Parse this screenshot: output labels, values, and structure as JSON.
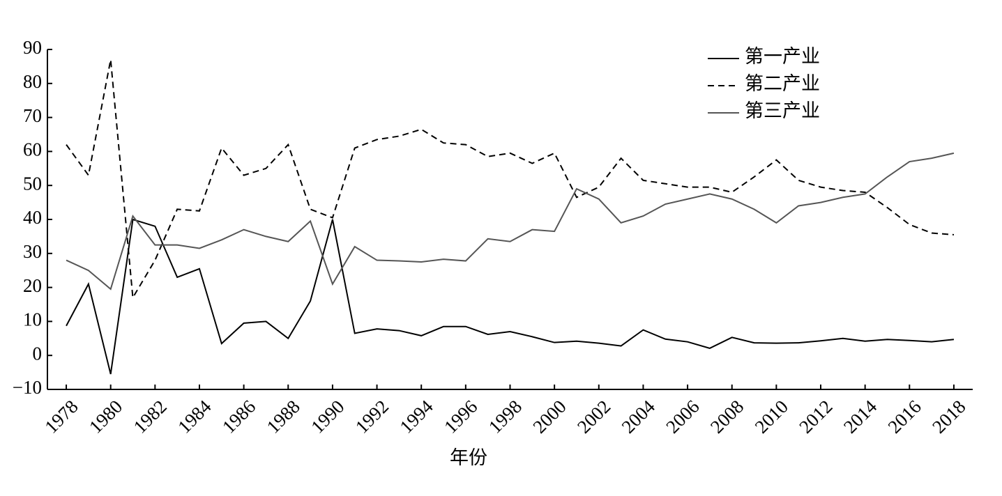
{
  "chart_data": {
    "type": "line",
    "x": [
      1978,
      1979,
      1980,
      1981,
      1982,
      1983,
      1984,
      1985,
      1986,
      1987,
      1988,
      1989,
      1990,
      1991,
      1992,
      1993,
      1994,
      1995,
      1996,
      1997,
      1998,
      1999,
      2000,
      2001,
      2002,
      2003,
      2004,
      2005,
      2006,
      2007,
      2008,
      2009,
      2010,
      2011,
      2012,
      2013,
      2014,
      2015,
      2016,
      2017,
      2018
    ],
    "series": [
      {
        "name": "第一产业",
        "color": "#000000",
        "style": "solid",
        "values": [
          8.7,
          21,
          -5.5,
          40,
          38,
          23,
          25.5,
          3.5,
          9.5,
          10,
          5,
          16,
          40,
          6.5,
          7.8,
          7.3,
          5.8,
          8.5,
          8.5,
          6.2,
          7,
          5.5,
          3.8,
          4.2,
          3.6,
          2.8,
          7.5,
          4.8,
          4,
          2.1,
          5.3,
          3.7,
          3.6,
          3.7,
          4.3,
          5,
          4.2,
          4.7,
          4.4,
          4,
          4.7
        ]
      },
      {
        "name": "第二产业",
        "color": "#000000",
        "style": "dashed",
        "values": [
          62,
          53,
          87,
          17,
          28,
          43,
          42.5,
          61,
          53,
          55,
          62,
          43,
          40.5,
          61,
          63.5,
          64.5,
          66.5,
          62.5,
          62,
          58.5,
          59.5,
          56.5,
          59.5,
          46.5,
          49.5,
          58,
          51.5,
          50.5,
          49.5,
          49.5,
          48,
          52.5,
          57.5,
          51.5,
          49.5,
          48.5,
          48,
          43.5,
          38.5,
          36,
          35.5
        ]
      },
      {
        "name": "第三产业",
        "color": "#555555",
        "style": "solid",
        "values": [
          28,
          25,
          19.5,
          41,
          32.5,
          32.5,
          31.5,
          34,
          37,
          35,
          33.5,
          39.5,
          21,
          32,
          28,
          27.8,
          27.5,
          28.3,
          27.8,
          34.3,
          33.5,
          37,
          36.5,
          49,
          46,
          39,
          41,
          44.5,
          46,
          47.5,
          46,
          43,
          39,
          44,
          45,
          46.5,
          47.5,
          52.5,
          57,
          58,
          59.5
        ]
      }
    ],
    "xlabel": "年份",
    "xlim": [
      1977.15,
      2018.85
    ],
    "xticks": [
      1978,
      1980,
      1982,
      1984,
      1986,
      1988,
      1990,
      1992,
      1994,
      1996,
      1998,
      2000,
      2002,
      2004,
      2006,
      2008,
      2010,
      2012,
      2014,
      2016,
      2018
    ],
    "ylim": [
      -10,
      90
    ],
    "yticks": [
      {
        "value": -10,
        "label": "−10"
      },
      0,
      10,
      20,
      30,
      40,
      50,
      60,
      70,
      80,
      90
    ],
    "legend": "upper right"
  }
}
